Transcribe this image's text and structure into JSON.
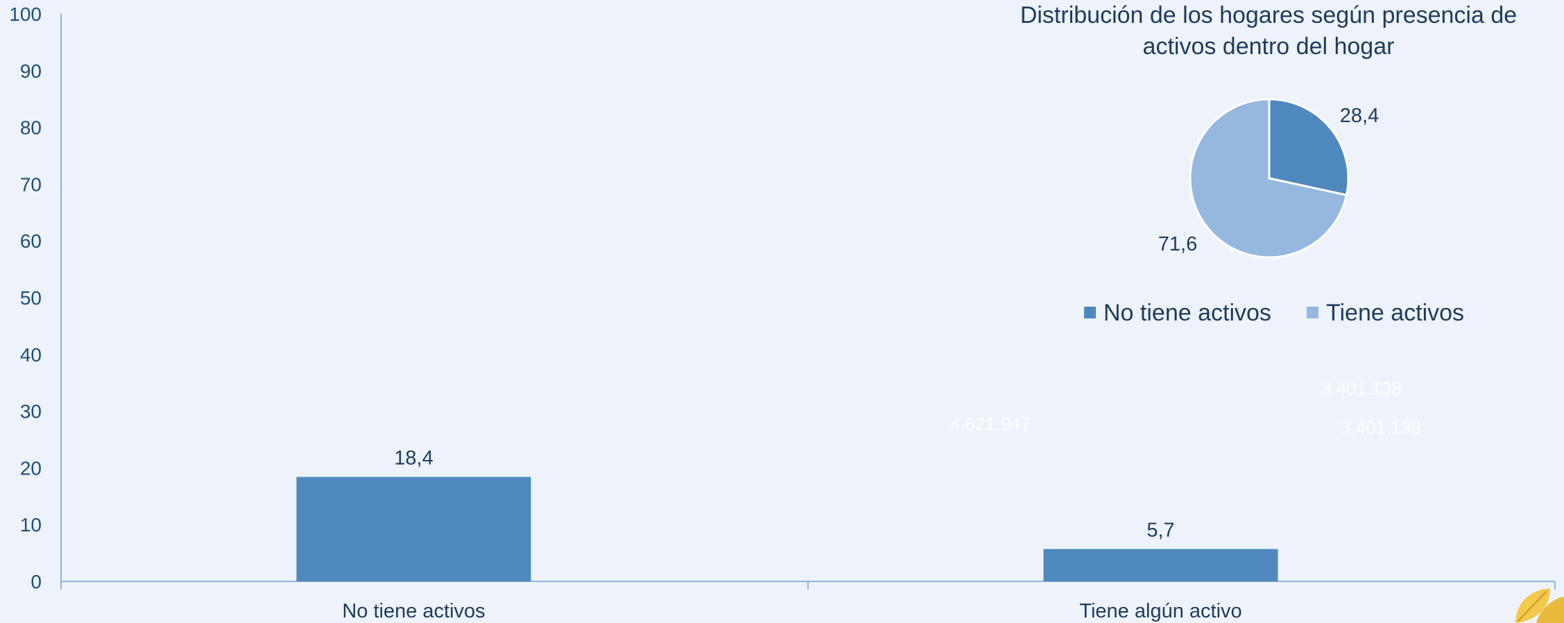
{
  "chart_data": [
    {
      "type": "bar",
      "categories": [
        "No tiene activos",
        "Tiene algún activo"
      ],
      "series": [
        {
          "values": [
            18.4,
            5.7
          ],
          "data_labels": [
            "18,4",
            "5,7"
          ],
          "color": "#4f88bd"
        }
      ],
      "ylim": [
        0,
        100
      ],
      "yticks": [
        0,
        10,
        20,
        30,
        40,
        50,
        60,
        70,
        80,
        90,
        100
      ],
      "grid": false,
      "ghost_labels": [
        "4.621.947",
        "3.401.138",
        "3.401.138"
      ]
    },
    {
      "type": "pie",
      "title_lines": [
        "Distribución de los hogares según presencia de",
        "activos dentro del hogar"
      ],
      "slices": [
        {
          "label": "No tiene activos",
          "value": 28.4,
          "data_label": "28,4",
          "color": "#4f88bd"
        },
        {
          "label": "Tiene activos",
          "value": 71.6,
          "data_label": "71,6",
          "color": "#96b8df"
        }
      ],
      "legend_position": "bottom"
    }
  ]
}
